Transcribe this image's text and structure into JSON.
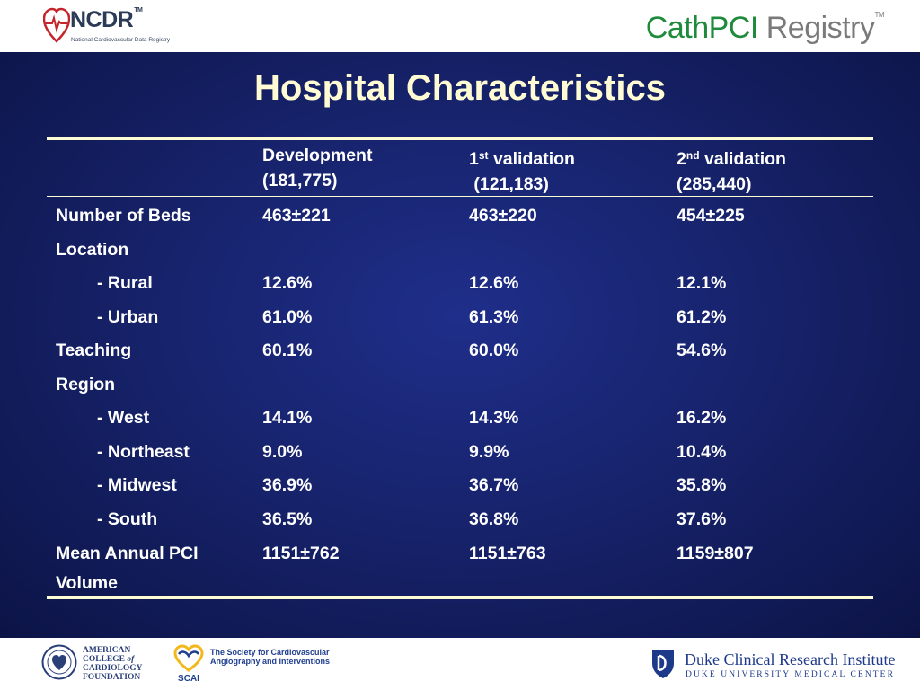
{
  "header": {
    "ncdr_title": "NCDR",
    "ncdr_tm": "TM",
    "ncdr_subtitle": "National Cardiovascular Data Registry",
    "registry_part1": "CathPCI",
    "registry_part2": " Registry",
    "registry_tm": "TM"
  },
  "slide": {
    "title": "Hospital Characteristics"
  },
  "table": {
    "headers": [
      {
        "line1": "",
        "line2": ""
      },
      {
        "line1": "Development",
        "line2": "(181,775)"
      },
      {
        "line1_pre": "1",
        "line1_sup": "st",
        "line1_post": " validation",
        "line2": " (121,183)"
      },
      {
        "line1_pre": "2",
        "line1_sup": "nd",
        "line1_post": " validation",
        "line2": "(285,440)"
      }
    ],
    "rows": [
      {
        "label": "Number of Beds",
        "dev": "463±221",
        "v1": "463±220",
        "v2": "454±225"
      },
      {
        "label": "Location",
        "dev": "",
        "v1": "",
        "v2": ""
      },
      {
        "label": "- Rural",
        "dev": "12.6%",
        "v1": "12.6%",
        "v2": "12.1%"
      },
      {
        "label": "- Urban",
        "dev": "61.0%",
        "v1": "61.3%",
        "v2": "61.2%"
      },
      {
        "label": "Teaching",
        "dev": "60.1%",
        "v1": "60.0%",
        "v2": "54.6%"
      },
      {
        "label": "Region",
        "dev": "",
        "v1": "",
        "v2": ""
      },
      {
        "label": "- West",
        "dev": "14.1%",
        "v1": "14.3%",
        "v2": "16.2%"
      },
      {
        "label": "- Northeast",
        "dev": "9.0%",
        "v1": "9.9%",
        "v2": "10.4%"
      },
      {
        "label": "- Midwest",
        "dev": "36.9%",
        "v1": "36.7%",
        "v2": "35.8%"
      },
      {
        "label": "- South",
        "dev": "36.5%",
        "v1": "36.8%",
        "v2": "37.6%"
      },
      {
        "label_line1": "Mean Annual PCI",
        "label_line2": "Volume",
        "dev": "1151±762",
        "v1": "1151±763",
        "v2": "1159±807"
      }
    ]
  },
  "footer": {
    "acc_line1": "AMERICAN",
    "acc_line2a": "COLLEGE ",
    "acc_line2b": "of",
    "acc_line3": "CARDIOLOGY",
    "acc_line4": "FOUNDATION",
    "scai_line1": "The Society for Cardiovascular",
    "scai_line2": "Angiography and Interventions",
    "scai_abbr": "SCAI",
    "duke_line1": "Duke Clinical Research Institute",
    "duke_line2": "DUKE UNIVERSITY MEDICAL CENTER"
  },
  "colors": {
    "background": "#17236c",
    "title": "#fffbd2",
    "text": "#ffffff",
    "cathpci_green": "#1e8a3c",
    "registry_gray": "#7a7a7a"
  },
  "icons": [
    "ncdr-heart-logo",
    "acc-seal-logo",
    "scai-heart-logo",
    "duke-shield-logo"
  ]
}
